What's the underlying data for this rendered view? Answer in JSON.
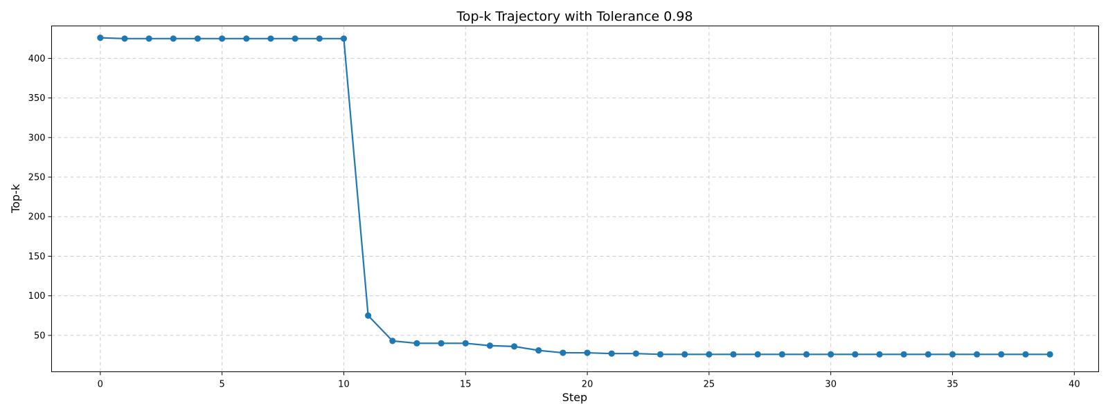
{
  "chart_data": {
    "type": "line",
    "title": "Top-k Trajectory with Tolerance 0.98",
    "xlabel": "Step",
    "ylabel": "Top-k",
    "xlim": [
      -2,
      41
    ],
    "ylim": [
      4,
      441
    ],
    "xticks": [
      0,
      5,
      10,
      15,
      20,
      25,
      30,
      35,
      40
    ],
    "yticks": [
      50,
      100,
      150,
      200,
      250,
      300,
      350,
      400
    ],
    "grid": true,
    "color": "#1f77b4",
    "series": [
      {
        "x": [
          0,
          1,
          2,
          3,
          4,
          5,
          6,
          7,
          8,
          9,
          10,
          11,
          12,
          13,
          14,
          15,
          16,
          17,
          18,
          19,
          20,
          21,
          22,
          23,
          24,
          25,
          26,
          27,
          28,
          29,
          30,
          31,
          32,
          33,
          34,
          35,
          36,
          37,
          38,
          39
        ],
        "values": [
          426,
          425,
          425,
          425,
          425,
          425,
          425,
          425,
          425,
          425,
          425,
          75,
          43,
          40,
          40,
          40,
          37,
          36,
          31,
          28,
          28,
          27,
          27,
          26,
          26,
          26,
          26,
          26,
          26,
          26,
          26,
          26,
          26,
          26,
          26,
          26,
          26,
          26,
          26,
          26
        ]
      }
    ]
  }
}
